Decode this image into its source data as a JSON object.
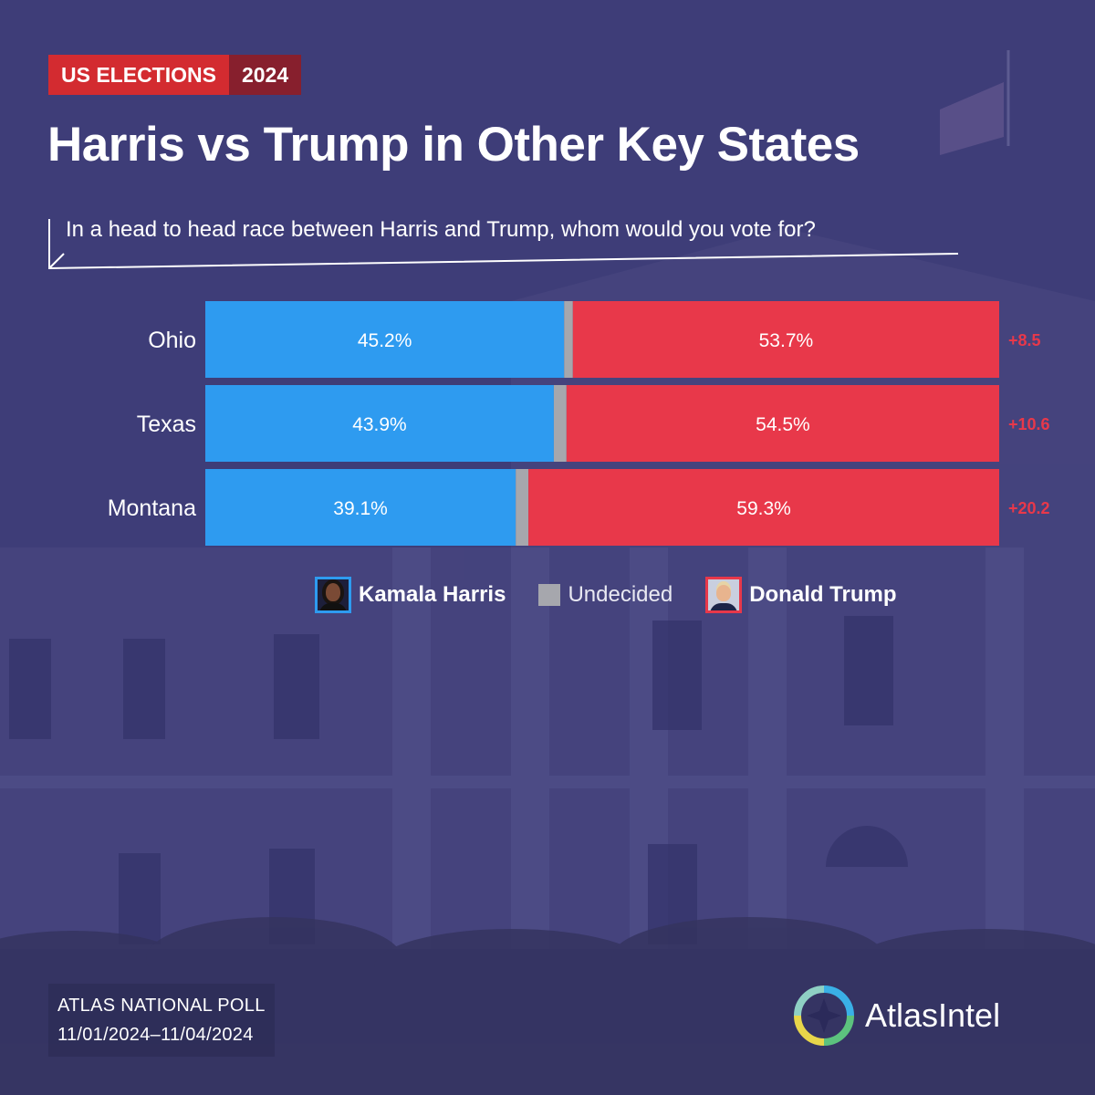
{
  "header": {
    "badge_left": "US ELECTIONS",
    "badge_right": "2024",
    "title": "Harris vs Trump in Other Key States",
    "question": "In a head to head race between Harris and Trump, whom would you vote for?"
  },
  "chart_data": {
    "type": "bar",
    "orientation": "horizontal",
    "stacked": true,
    "normalized": true,
    "categories": [
      "Ohio",
      "Texas",
      "Montana"
    ],
    "series": [
      {
        "name": "Kamala Harris",
        "values": [
          45.2,
          43.9,
          39.1
        ],
        "labels": [
          "45.2%",
          "43.9%",
          "39.1%"
        ],
        "color": "#2e9bf0"
      },
      {
        "name": "Undecided",
        "values": [
          1.1,
          1.6,
          1.6
        ],
        "color": "#a6a7ad"
      },
      {
        "name": "Donald Trump",
        "values": [
          53.7,
          54.5,
          59.3
        ],
        "labels": [
          "53.7%",
          "54.5%",
          "59.3%"
        ],
        "color": "#e8384a"
      }
    ],
    "margins": [
      "+8.5",
      "+10.6",
      "+20.2"
    ],
    "margin_color": "#e8384a",
    "legend_position": "bottom",
    "grid": false
  },
  "legend": {
    "harris": "Kamala Harris",
    "undecided": "Undecided",
    "trump": "Donald Trump"
  },
  "footer": {
    "source_line1": "ATLAS NATIONAL POLL",
    "source_line2": "11/01/2024–11/04/2024",
    "brand": "AtlasIntel"
  },
  "colors": {
    "background": "#3e3d78",
    "badge_red": "#d32b30",
    "badge_dark": "#871f2d",
    "harris_blue": "#2e9bf0",
    "trump_red": "#e8384a",
    "undecided_gray": "#a6a7ad"
  }
}
